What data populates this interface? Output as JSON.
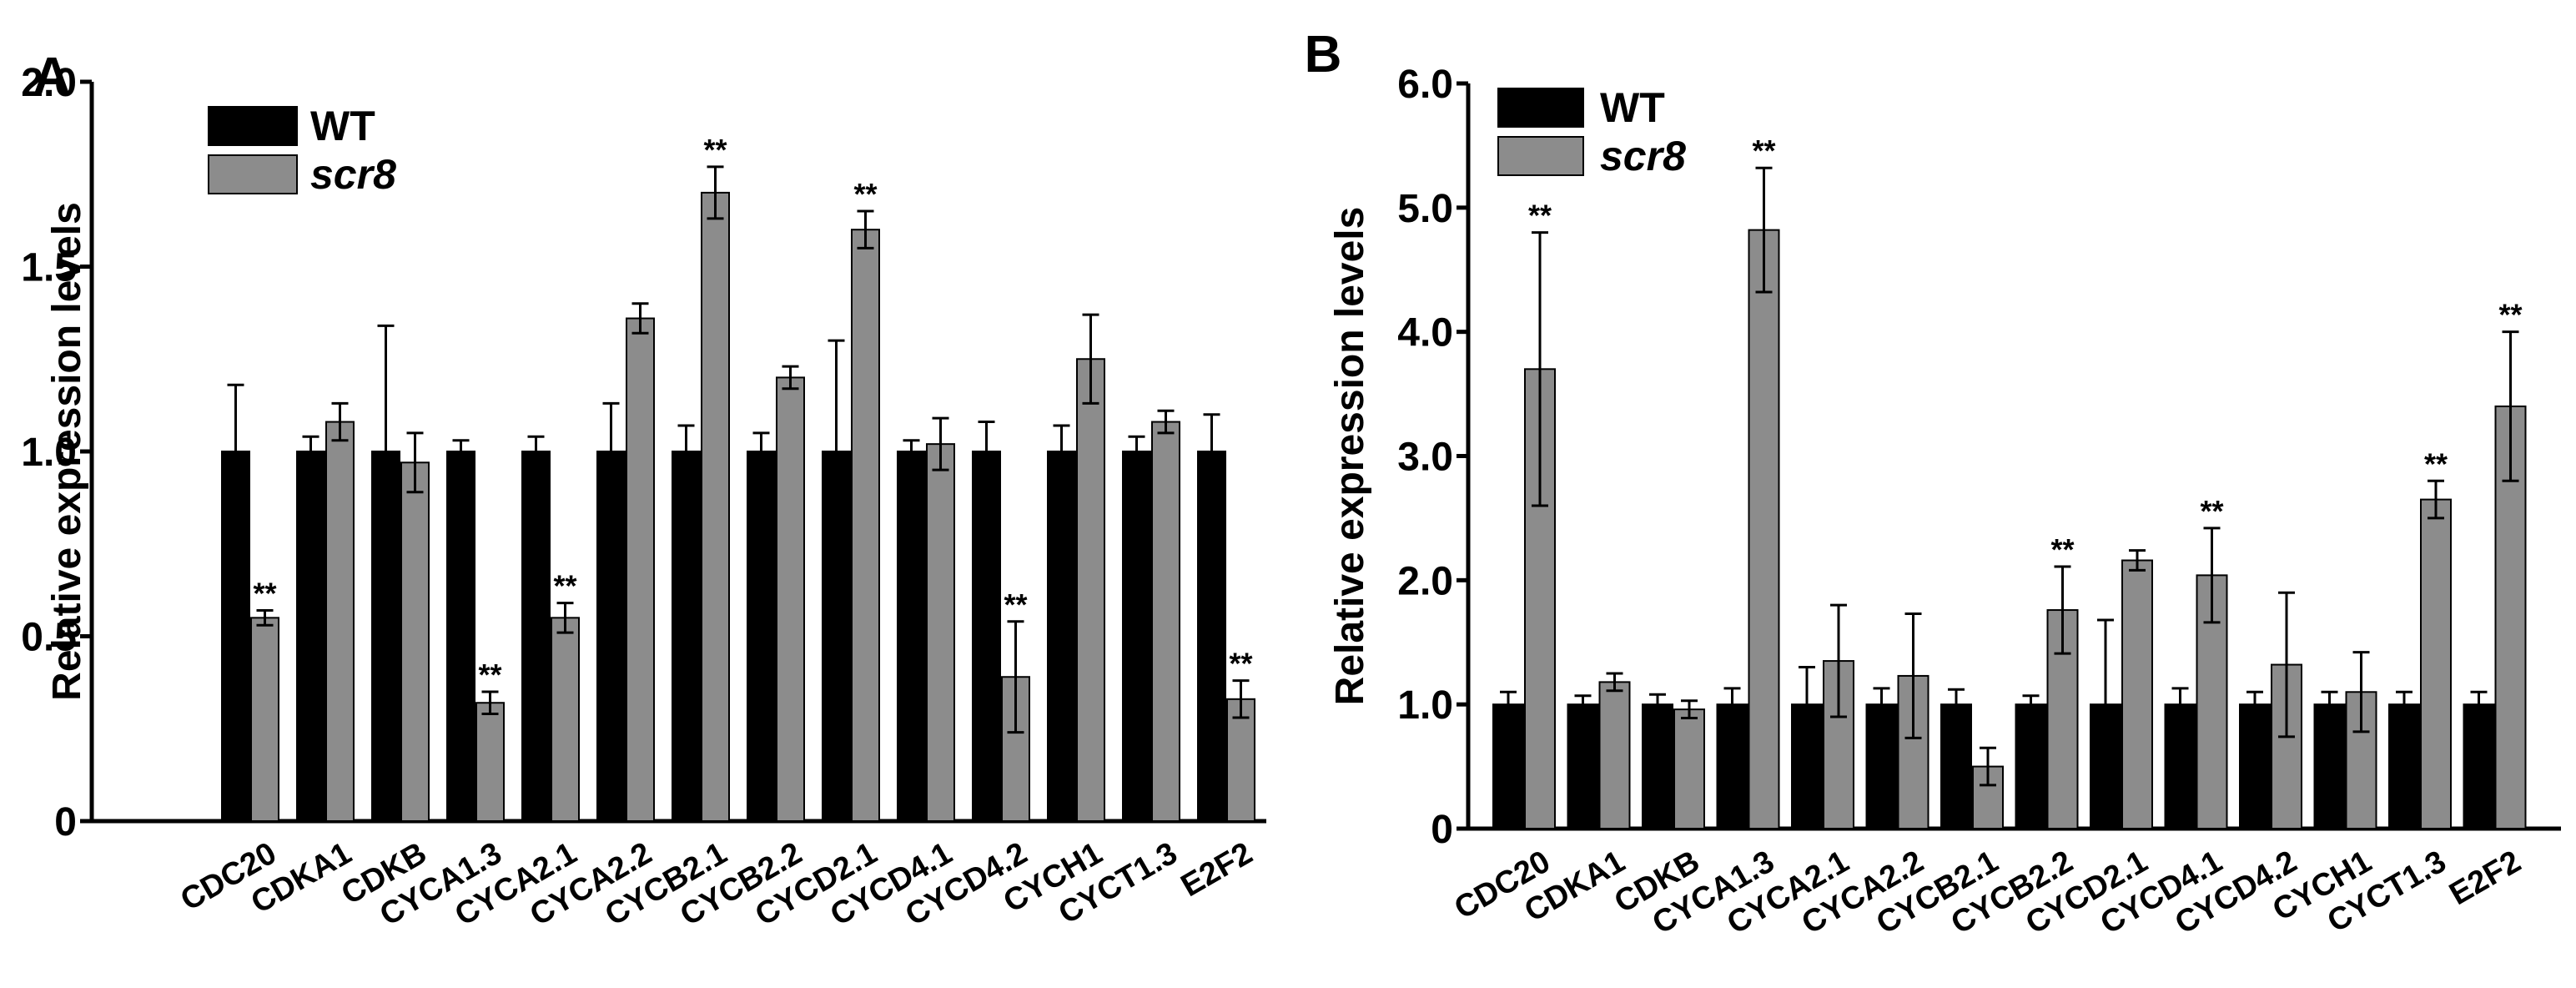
{
  "figure": {
    "colors": {
      "wt": "#000000",
      "scr8": "#8c8c8c",
      "axis": "#000000"
    }
  },
  "chart_data": [
    {
      "type": "bar",
      "panel_label": "A",
      "ylabel": "Relative expression levels",
      "ylim": [
        0,
        2.0
      ],
      "yticks": [
        "0",
        "0.5",
        "1.0",
        "1.5",
        "2.0"
      ],
      "ytick_values": [
        0,
        0.5,
        1.0,
        1.5,
        2.0
      ],
      "categories": [
        "CDC20",
        "CDKA1",
        "CDKB",
        "CYCA1.3",
        "CYCA2.1",
        "CYCA2.2",
        "CYCB2.1",
        "CYCB2.2",
        "CYCD2.1",
        "CYCD4.1",
        "CYCD4.2",
        "CYCH1",
        "CYCT1.3",
        "E2F2"
      ],
      "legend": {
        "placement": "top-left",
        "entries": [
          "WT",
          "scr8"
        ]
      },
      "series": [
        {
          "name": "WT",
          "values": [
            1,
            1,
            1,
            1,
            1,
            1,
            1,
            1,
            1,
            1,
            1,
            1,
            1,
            1
          ],
          "errors": [
            0.18,
            0.04,
            0.34,
            0.03,
            0.04,
            0.13,
            0.07,
            0.05,
            0.3,
            0.03,
            0.08,
            0.07,
            0.04,
            0.1
          ],
          "annotations": [
            "",
            "",
            "",
            "",
            "",
            "",
            "",
            "",
            "",
            "",
            "",
            "",
            "",
            ""
          ]
        },
        {
          "name": "scr8",
          "values": [
            0.55,
            1.08,
            0.97,
            0.32,
            0.55,
            1.36,
            1.7,
            1.2,
            1.6,
            1.02,
            0.39,
            1.25,
            1.08,
            0.33
          ],
          "errors": [
            0.02,
            0.05,
            0.08,
            0.03,
            0.04,
            0.04,
            0.07,
            0.03,
            0.05,
            0.07,
            0.15,
            0.12,
            0.03,
            0.05
          ],
          "annotations": [
            "**",
            "",
            "",
            "**",
            "**",
            "",
            "**",
            "",
            "**",
            "",
            "**",
            "",
            "",
            "**"
          ]
        }
      ]
    },
    {
      "type": "bar",
      "panel_label": "B",
      "ylabel": "Relative expression levels",
      "ylim": [
        0,
        6.0
      ],
      "yticks": [
        "0",
        "1.0",
        "2.0",
        "3.0",
        "4.0",
        "5.0",
        "6.0"
      ],
      "ytick_values": [
        0,
        1,
        2,
        3,
        4,
        5,
        6
      ],
      "categories": [
        "CDC20",
        "CDKA1",
        "CDKB",
        "CYCA1.3",
        "CYCA2.1",
        "CYCA2.2",
        "CYCB2.1",
        "CYCB2.2",
        "CYCD2.1",
        "CYCD4.1",
        "CYCD4.2",
        "CYCH1",
        "CYCT1.3",
        "E2F2"
      ],
      "legend": {
        "placement": "top-left",
        "entries": [
          "WT",
          "scr8"
        ]
      },
      "series": [
        {
          "name": "WT",
          "values": [
            1,
            1,
            1,
            1,
            1,
            1,
            1,
            1,
            1,
            1,
            1,
            1,
            1,
            1
          ],
          "errors": [
            0.1,
            0.07,
            0.08,
            0.13,
            0.3,
            0.13,
            0.12,
            0.07,
            0.68,
            0.13,
            0.1,
            0.1,
            0.1,
            0.1
          ],
          "annotations": [
            "",
            "",
            "",
            "",
            "",
            "",
            "",
            "",
            "",
            "",
            "",
            "",
            "",
            ""
          ]
        },
        {
          "name": "scr8",
          "values": [
            3.7,
            1.18,
            0.96,
            4.82,
            1.35,
            1.23,
            0.5,
            1.76,
            2.16,
            2.04,
            1.32,
            1.1,
            2.65,
            3.4
          ],
          "errors": [
            1.1,
            0.07,
            0.07,
            0.5,
            0.45,
            0.5,
            0.15,
            0.35,
            0.08,
            0.38,
            0.58,
            0.32,
            0.15,
            0.6
          ],
          "annotations": [
            "**",
            "",
            "",
            "**",
            "",
            "",
            "",
            "**",
            "",
            "**",
            "",
            "",
            "**",
            "**"
          ]
        }
      ]
    }
  ]
}
